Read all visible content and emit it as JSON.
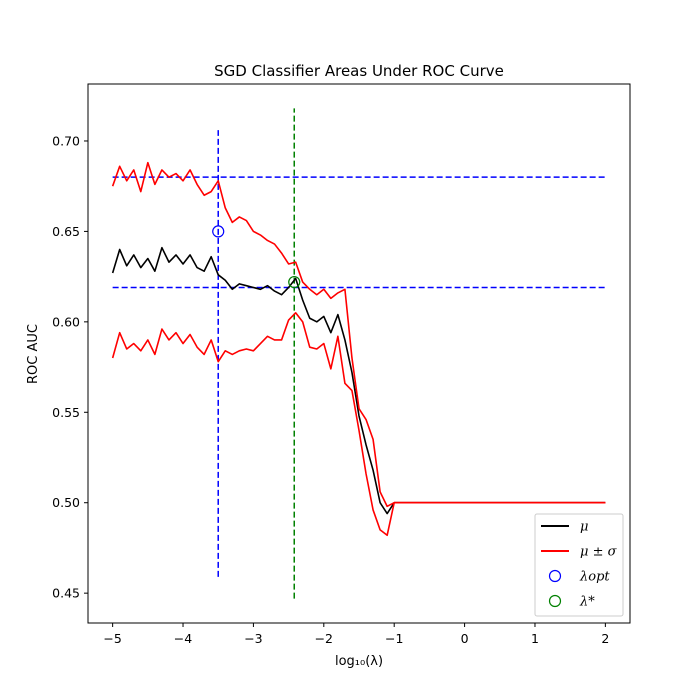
{
  "chart_data": {
    "type": "line",
    "title": "SGD Classifier Areas Under ROC Curve",
    "xlabel": "log₁₀(λ)",
    "ylabel": "ROC AUC",
    "xlim": [
      -5.35,
      2.35
    ],
    "ylim": [
      0.4335,
      0.7315
    ],
    "xticks": [
      -5,
      -4,
      -3,
      -2,
      -1,
      0,
      1,
      2
    ],
    "xtick_labels": [
      "−5",
      "−4",
      "−3",
      "−2",
      "−1",
      "0",
      "1",
      "2"
    ],
    "yticks": [
      0.45,
      0.5,
      0.55,
      0.6,
      0.65,
      0.7
    ],
    "ytick_labels": [
      "0.45",
      "0.50",
      "0.55",
      "0.60",
      "0.65",
      "0.70"
    ],
    "grid": false,
    "legend_position": "bottom-right",
    "colors": {
      "mean": "#000000",
      "band": "#ff0000",
      "opt": "#0000ff",
      "star": "#008000"
    },
    "series": [
      {
        "name": "μ",
        "x": [
          -5.0,
          -4.9,
          -4.8,
          -4.7,
          -4.6,
          -4.5,
          -4.4,
          -4.3,
          -4.2,
          -4.1,
          -4.0,
          -3.9,
          -3.8,
          -3.7,
          -3.6,
          -3.5,
          -3.4,
          -3.3,
          -3.2,
          -3.1,
          -3.0,
          -2.9,
          -2.8,
          -2.7,
          -2.6,
          -2.5,
          -2.4,
          -2.3,
          -2.2,
          -2.1,
          -2.0,
          -1.9,
          -1.8,
          -1.7,
          -1.6,
          -1.5,
          -1.4,
          -1.3,
          -1.2,
          -1.1,
          -1.0,
          0.0,
          1.0,
          2.0
        ],
        "y": [
          0.627,
          0.64,
          0.631,
          0.637,
          0.63,
          0.635,
          0.628,
          0.641,
          0.633,
          0.637,
          0.632,
          0.637,
          0.63,
          0.628,
          0.636,
          0.626,
          0.623,
          0.618,
          0.621,
          0.62,
          0.619,
          0.618,
          0.62,
          0.617,
          0.615,
          0.619,
          0.624,
          0.612,
          0.602,
          0.6,
          0.603,
          0.594,
          0.604,
          0.59,
          0.572,
          0.548,
          0.532,
          0.518,
          0.5,
          0.494,
          0.5,
          0.5,
          0.5,
          0.5
        ]
      },
      {
        "name": "μ ± σ",
        "x": [
          -5.0,
          -4.9,
          -4.8,
          -4.7,
          -4.6,
          -4.5,
          -4.4,
          -4.3,
          -4.2,
          -4.1,
          -4.0,
          -3.9,
          -3.8,
          -3.7,
          -3.6,
          -3.5,
          -3.4,
          -3.3,
          -3.2,
          -3.1,
          -3.0,
          -2.9,
          -2.8,
          -2.7,
          -2.6,
          -2.5,
          -2.4,
          -2.3,
          -2.2,
          -2.1,
          -2.0,
          -1.9,
          -1.8,
          -1.7,
          -1.6,
          -1.5,
          -1.4,
          -1.3,
          -1.2,
          -1.1,
          -1.0,
          0.0,
          1.0,
          2.0
        ],
        "y": [
          0.675,
          0.686,
          0.678,
          0.684,
          0.672,
          0.688,
          0.676,
          0.684,
          0.68,
          0.682,
          0.678,
          0.684,
          0.676,
          0.67,
          0.672,
          0.678,
          0.663,
          0.655,
          0.658,
          0.656,
          0.65,
          0.648,
          0.645,
          0.643,
          0.638,
          0.632,
          0.633,
          0.622,
          0.618,
          0.615,
          0.618,
          0.613,
          0.616,
          0.618,
          0.58,
          0.552,
          0.546,
          0.535,
          0.506,
          0.498,
          0.5,
          0.5,
          0.5,
          0.5
        ]
      },
      {
        "name": "",
        "x": [
          -5.0,
          -4.9,
          -4.8,
          -4.7,
          -4.6,
          -4.5,
          -4.4,
          -4.3,
          -4.2,
          -4.1,
          -4.0,
          -3.9,
          -3.8,
          -3.7,
          -3.6,
          -3.5,
          -3.4,
          -3.3,
          -3.2,
          -3.1,
          -3.0,
          -2.9,
          -2.8,
          -2.7,
          -2.6,
          -2.5,
          -2.4,
          -2.3,
          -2.2,
          -2.1,
          -2.0,
          -1.9,
          -1.8,
          -1.7,
          -1.6,
          -1.5,
          -1.4,
          -1.3,
          -1.2,
          -1.1,
          -1.0,
          0.0,
          1.0,
          2.0
        ],
        "y": [
          0.58,
          0.594,
          0.585,
          0.588,
          0.584,
          0.59,
          0.582,
          0.596,
          0.59,
          0.594,
          0.588,
          0.593,
          0.586,
          0.582,
          0.59,
          0.578,
          0.584,
          0.582,
          0.584,
          0.585,
          0.584,
          0.588,
          0.592,
          0.59,
          0.59,
          0.601,
          0.605,
          0.6,
          0.586,
          0.585,
          0.588,
          0.574,
          0.592,
          0.566,
          0.562,
          0.54,
          0.516,
          0.496,
          0.485,
          0.482,
          0.5,
          0.5,
          0.5,
          0.5
        ]
      }
    ],
    "markers": [
      {
        "name": "λ_opt",
        "x": -3.5,
        "y": 0.65
      },
      {
        "name": "λ*",
        "x": -2.42,
        "y": 0.622
      }
    ],
    "reference_lines": [
      {
        "orientation": "vertical",
        "x": -3.5,
        "y_from": 0.459,
        "y_to": 0.706,
        "color": "blue"
      },
      {
        "orientation": "vertical",
        "x": -2.42,
        "y_from": 0.447,
        "y_to": 0.718,
        "color": "green"
      },
      {
        "orientation": "horizontal",
        "y": 0.68,
        "x_from": -5.0,
        "x_to": 2.0,
        "color": "blue"
      },
      {
        "orientation": "horizontal",
        "y": 0.619,
        "x_from": -5.0,
        "x_to": 2.0,
        "color": "blue"
      }
    ],
    "legend": [
      {
        "label": "μ",
        "kind": "line",
        "color": "#000000"
      },
      {
        "label": "μ ± σ",
        "kind": "line",
        "color": "#ff0000"
      },
      {
        "label": "λopt",
        "kind": "marker",
        "color": "#0000ff"
      },
      {
        "label": "λ*",
        "kind": "marker",
        "color": "#008000"
      }
    ]
  }
}
